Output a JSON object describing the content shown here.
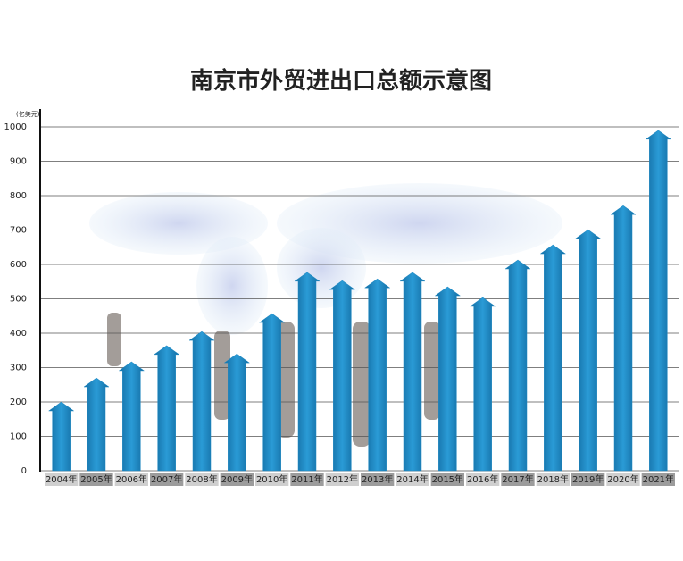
{
  "chart_data": {
    "type": "arrow-bar",
    "title": "南京市外贸进出口总额示意图",
    "y_unit": "(亿美元)",
    "categories": [
      "2004年",
      "2005年",
      "2006年",
      "2007年",
      "2008年",
      "2009年",
      "2010年",
      "2011年",
      "2012年",
      "2013年",
      "2014年",
      "2015年",
      "2016年",
      "2017年",
      "2018年",
      "2019年",
      "2020年",
      "2021年"
    ],
    "values": [
      200,
      270,
      317,
      364,
      405,
      340,
      457,
      577,
      553,
      558,
      577,
      535,
      504,
      613,
      657,
      701,
      771,
      990
    ],
    "color": "#1f88c2",
    "ylim": [
      0,
      1000
    ],
    "yticks": [
      0,
      100,
      200,
      300,
      400,
      500,
      600,
      700,
      800,
      900,
      1000
    ],
    "grid": true
  }
}
